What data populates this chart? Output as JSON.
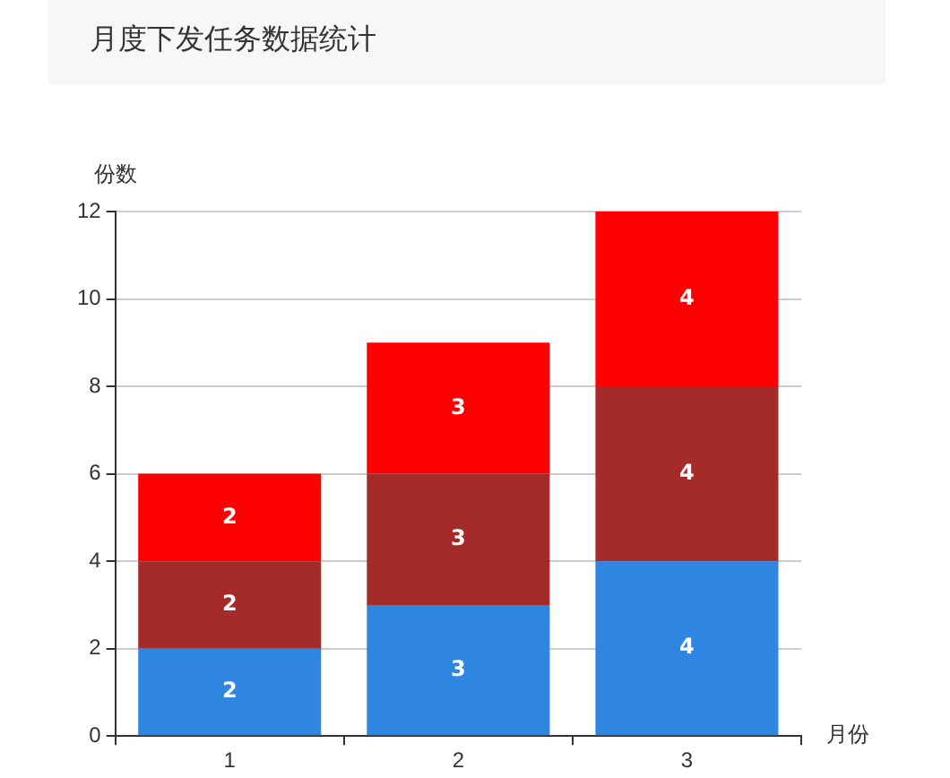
{
  "chart_data": {
    "type": "bar",
    "title": "月度下发任务数据统计",
    "xlabel": "月份",
    "ylabel": "份数",
    "categories": [
      "1",
      "2",
      "3"
    ],
    "series": [
      {
        "color": "#2e86e0",
        "values": [
          2,
          3,
          4
        ]
      },
      {
        "color": "#a52a2a",
        "values": [
          2,
          3,
          4
        ]
      },
      {
        "color": "#ff0000",
        "values": [
          2,
          3,
          4
        ]
      }
    ],
    "stacked": true,
    "ylim": [
      0,
      12
    ],
    "yticks": [
      0,
      2,
      4,
      6,
      8,
      10,
      12
    ],
    "grid": "y",
    "data_labels": true
  }
}
